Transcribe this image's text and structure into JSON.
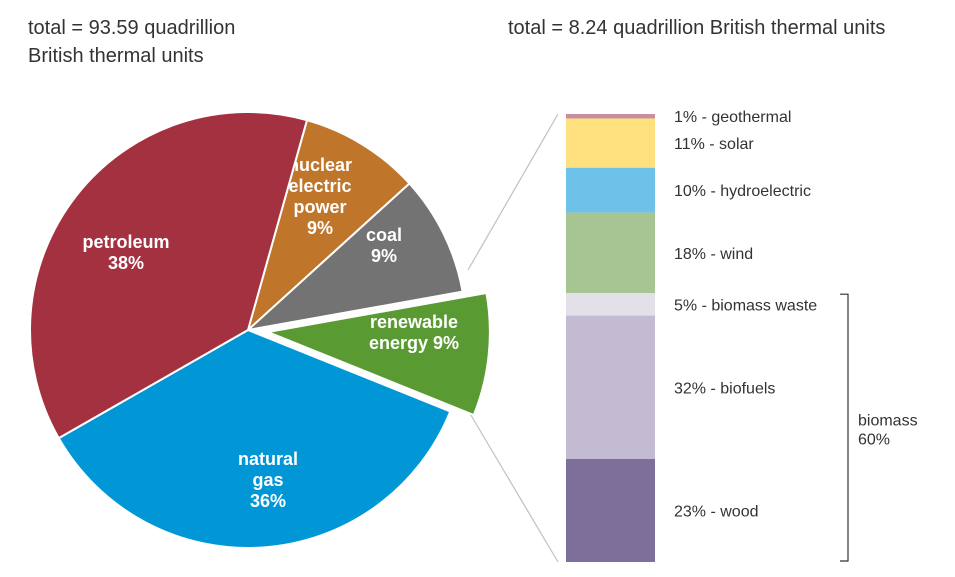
{
  "left_header": [
    "total = 93.59 quadrillion",
    "British thermal units"
  ],
  "right_header": "total = 8.24 quadrillion British thermal units",
  "chart_data": [
    {
      "type": "pie",
      "slices": [
        {
          "key": "nuclear",
          "label_lines": [
            "nuclear",
            "electric",
            "power",
            "9%"
          ],
          "value": 9,
          "color": "#bf762b"
        },
        {
          "key": "coal",
          "label_lines": [
            "coal",
            "9%"
          ],
          "value": 9,
          "color": "#737373"
        },
        {
          "key": "renewable",
          "label_lines": [
            "renewable",
            "energy 9%"
          ],
          "value": 9,
          "color": "#5a9a32",
          "exploded": true
        },
        {
          "key": "natural-gas",
          "label_lines": [
            "natural",
            "gas",
            "36%"
          ],
          "value": 36,
          "color": "#0197d7"
        },
        {
          "key": "petroleum",
          "label_lines": [
            "petroleum",
            "38%"
          ],
          "value": 38,
          "color": "#a33140"
        }
      ]
    },
    {
      "type": "bar",
      "stacked": true,
      "segments": [
        {
          "key": "geothermal",
          "label": "1% - geothermal",
          "value": 1,
          "color": "#c98fa0"
        },
        {
          "key": "solar",
          "label": "11% - solar",
          "value": 11,
          "color": "#fee17e"
        },
        {
          "key": "hydroelectric",
          "label": "10% - hydroelectric",
          "value": 10,
          "color": "#6ec2ea"
        },
        {
          "key": "wind",
          "label": "18% - wind",
          "value": 18,
          "color": "#a7c592"
        },
        {
          "key": "biomass-waste",
          "label": "5% - biomass waste",
          "value": 5,
          "color": "#e4e0ea"
        },
        {
          "key": "biofuels",
          "label": "32% - biofuels",
          "value": 32,
          "color": "#c3bbd2"
        },
        {
          "key": "wood",
          "label": "23% - wood",
          "value": 23,
          "color": "#7d6e9a"
        }
      ],
      "group": {
        "label_lines": [
          "biomass",
          "60%"
        ],
        "members": [
          "biomass-waste",
          "biofuels",
          "wood"
        ]
      }
    }
  ]
}
